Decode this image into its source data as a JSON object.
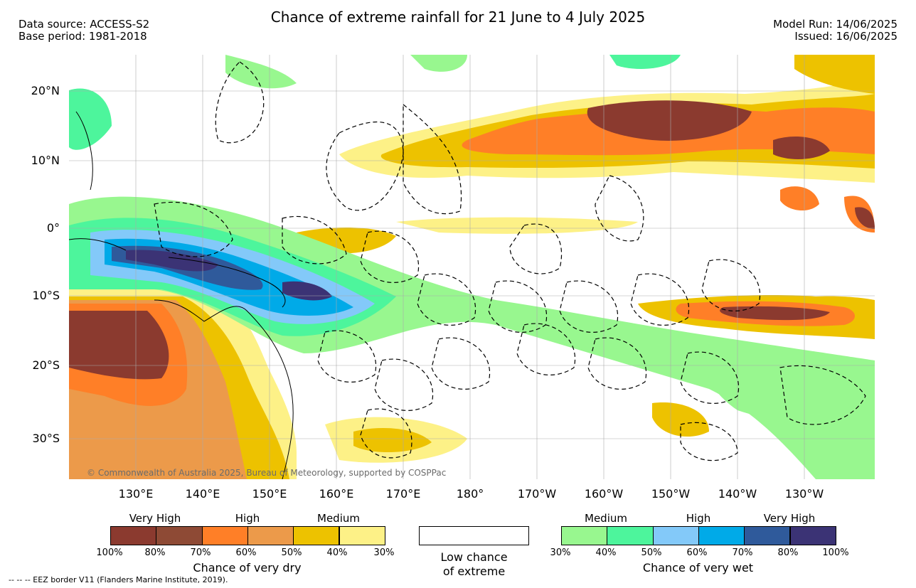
{
  "header": {
    "data_source": "Data source: ACCESS-S2",
    "base_period": "Base period: 1981-2018",
    "title": "Chance of extreme rainfall for 21 June to 4 July 2025",
    "model_run": "Model Run: 14/06/2025",
    "issued": "Issued: 16/06/2025"
  },
  "map": {
    "lat_labels": [
      "20°N",
      "10°N",
      "0°",
      "10°S",
      "20°S",
      "30°S"
    ],
    "lon_labels": [
      "130°E",
      "140°E",
      "150°E",
      "160°E",
      "170°E",
      "180°",
      "170°W",
      "160°W",
      "150°W",
      "140°W",
      "130°W"
    ],
    "copyright": "© Commonwealth of Australia 2025, Bureau of Meteorology, supported by COSPPac"
  },
  "legend_dry": {
    "categories": [
      "Very High",
      "High",
      "Medium"
    ],
    "colors": [
      "#8b3a2f",
      "#8e4a35",
      "#ff7f27",
      "#ec9a4a",
      "#edc200",
      "#fdf187"
    ],
    "ticks": [
      "100%",
      "80%",
      "70%",
      "60%",
      "50%",
      "40%",
      "30%"
    ],
    "title": "Chance of very dry"
  },
  "legend_low": {
    "line1": "Low chance",
    "line2": "of extreme",
    "color": "#ffffff"
  },
  "legend_wet": {
    "categories": [
      "Medium",
      "High",
      "Very High"
    ],
    "colors": [
      "#98f78f",
      "#4df59c",
      "#83c9f9",
      "#00aae8",
      "#2f5a9b",
      "#3b3375"
    ],
    "ticks": [
      "30%",
      "40%",
      "50%",
      "60%",
      "70%",
      "80%",
      "100%"
    ],
    "title": "Chance of very wet"
  },
  "footer": "--  --  -- EEZ border V11 (Flanders Marine Institute, 2019)."
}
